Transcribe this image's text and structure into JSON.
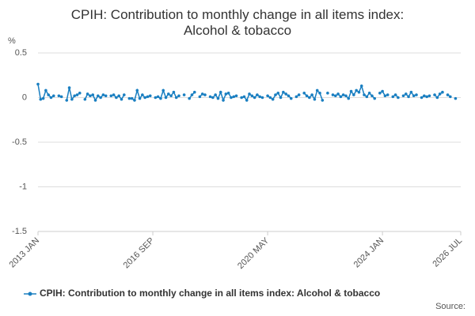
{
  "chart_data": {
    "type": "line",
    "title": "CPIH: Contribution to monthly change in all items index: Alcohol & tobacco",
    "y_label": "%",
    "source": "Source:",
    "categories": [
      "2013 JAN",
      null,
      null,
      null,
      null,
      null,
      null,
      null,
      null,
      null,
      null,
      null,
      null,
      null,
      null,
      null,
      null,
      null,
      null,
      null,
      null,
      null,
      null,
      null,
      null,
      null,
      null,
      null,
      null,
      null,
      null,
      null,
      null,
      null,
      null,
      null,
      null,
      null,
      null,
      null,
      null,
      null,
      null,
      null,
      "2016 SEP",
      null,
      null,
      null,
      null,
      null,
      null,
      null,
      null,
      null,
      null,
      null,
      null,
      null,
      null,
      null,
      null,
      null,
      null,
      null,
      null,
      null,
      null,
      null,
      null,
      null,
      null,
      null,
      null,
      null,
      null,
      null,
      null,
      null,
      null,
      null,
      null,
      null,
      null,
      null,
      null,
      null,
      null,
      null,
      "2020 MAY",
      null,
      null,
      null,
      null,
      null,
      null,
      null,
      null,
      null,
      null,
      null,
      null,
      null,
      null,
      null,
      null,
      null,
      null,
      null,
      null,
      null,
      null,
      null,
      null,
      null,
      null,
      null,
      null,
      null,
      null,
      null,
      null,
      null,
      null,
      null,
      null,
      null,
      null,
      null,
      null,
      null,
      null,
      null,
      "2024 JAN",
      null,
      null,
      null,
      null,
      null,
      null,
      null,
      null,
      null,
      null,
      null,
      null,
      null,
      null,
      null,
      null,
      null,
      null,
      null,
      null,
      null,
      null,
      null,
      null,
      null,
      null,
      null,
      null,
      null,
      "2026 JUL"
    ],
    "series": [
      {
        "name": "CPIH: Contribution to monthly change in all items index: Alcohol & tobacco",
        "color": "#1a7fc1",
        "values": [
          0.15,
          -0.02,
          -0.01,
          0.08,
          0.03,
          0.0,
          0.02,
          null,
          0.02,
          0.01,
          null,
          -0.03,
          0.11,
          -0.02,
          0.02,
          0.03,
          0.05,
          null,
          -0.02,
          0.04,
          0.02,
          0.03,
          -0.03,
          0.02,
          0.0,
          0.03,
          0.02,
          null,
          0.02,
          0.03,
          0.0,
          0.02,
          -0.02,
          0.03,
          null,
          -0.01,
          -0.01,
          -0.03,
          0.08,
          -0.01,
          0.03,
          0.0,
          0.01,
          0.02,
          null,
          0.0,
          0.01,
          -0.01,
          0.08,
          0.0,
          0.04,
          0.02,
          0.06,
          0.0,
          0.02,
          null,
          0.03,
          null,
          -0.01,
          0.03,
          0.06,
          null,
          0.01,
          0.04,
          0.03,
          null,
          0.01,
          0.0,
          0.03,
          -0.01,
          0.06,
          -0.03,
          0.04,
          0.05,
          0.0,
          0.01,
          0.02,
          null,
          0.0,
          0.01,
          -0.03,
          0.04,
          0.02,
          0.0,
          0.03,
          0.01,
          0.0,
          null,
          0.02,
          0.0,
          -0.02,
          0.03,
          0.05,
          0.0,
          0.06,
          0.04,
          0.02,
          -0.01,
          null,
          0.01,
          0.03,
          null,
          0.05,
          0.02,
          0.0,
          0.03,
          -0.02,
          0.08,
          0.05,
          -0.03,
          null,
          0.05,
          null,
          0.03,
          0.02,
          0.04,
          0.01,
          0.03,
          0.02,
          -0.01,
          0.07,
          0.03,
          0.08,
          0.06,
          0.13,
          0.03,
          0.01,
          0.05,
          0.02,
          -0.01,
          null,
          0.05,
          0.07,
          0.02,
          0.03,
          null,
          0.01,
          0.03,
          0.0,
          null,
          0.02,
          0.04,
          0.01,
          0.06,
          0.02,
          0.03,
          null,
          0.0,
          0.02,
          0.01,
          0.02,
          null,
          0.03,
          0.0,
          0.04,
          0.06,
          null,
          0.03,
          0.01,
          null,
          -0.01,
          null,
          null
        ]
      }
    ],
    "ylim": [
      -1.5,
      0.5
    ],
    "yticks": [
      -1.5,
      -1,
      -0.5,
      0,
      0.5
    ],
    "grid": true
  }
}
